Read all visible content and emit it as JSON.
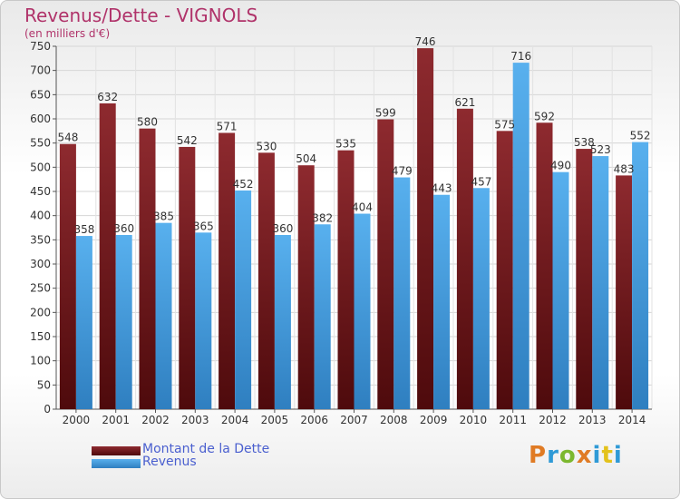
{
  "title": "Revenus/Dette - VIGNOLS",
  "subtitle": "(en milliers d'€)",
  "colors": {
    "dette": "#7b1f24",
    "revenus": "#4aa3e3",
    "accent": "#b0336a",
    "legend_text": "#4a5fcf"
  },
  "logo": {
    "letters": [
      "P",
      "r",
      "o",
      "x",
      "i",
      "t",
      "i"
    ],
    "colors": [
      "#e07b24",
      "#2f9ad6",
      "#7cb82f",
      "#e07b24",
      "#2f9ad6",
      "#e3c21b",
      "#2f9ad6"
    ]
  },
  "legend": [
    {
      "label": "Montant de la Dette",
      "color_key": "dette"
    },
    {
      "label": "Revenus",
      "color_key": "revenus"
    }
  ],
  "chart_data": {
    "type": "bar",
    "categories": [
      "2000",
      "2001",
      "2002",
      "2003",
      "2004",
      "2005",
      "2006",
      "2007",
      "2008",
      "2009",
      "2010",
      "2011",
      "2012",
      "2013",
      "2014"
    ],
    "series": [
      {
        "name": "Montant de la Dette",
        "values": [
          548,
          632,
          580,
          542,
          571,
          530,
          504,
          535,
          599,
          746,
          621,
          575,
          592,
          538,
          483
        ]
      },
      {
        "name": "Revenus",
        "values": [
          358,
          360,
          385,
          365,
          452,
          360,
          382,
          404,
          479,
          443,
          457,
          716,
          490,
          523,
          552
        ]
      }
    ],
    "ylim": [
      0,
      750
    ],
    "yticks": [
      0,
      50,
      100,
      150,
      200,
      250,
      300,
      350,
      400,
      450,
      500,
      550,
      600,
      650,
      700,
      750
    ],
    "grid": true,
    "legend_position": "bottom-left"
  }
}
